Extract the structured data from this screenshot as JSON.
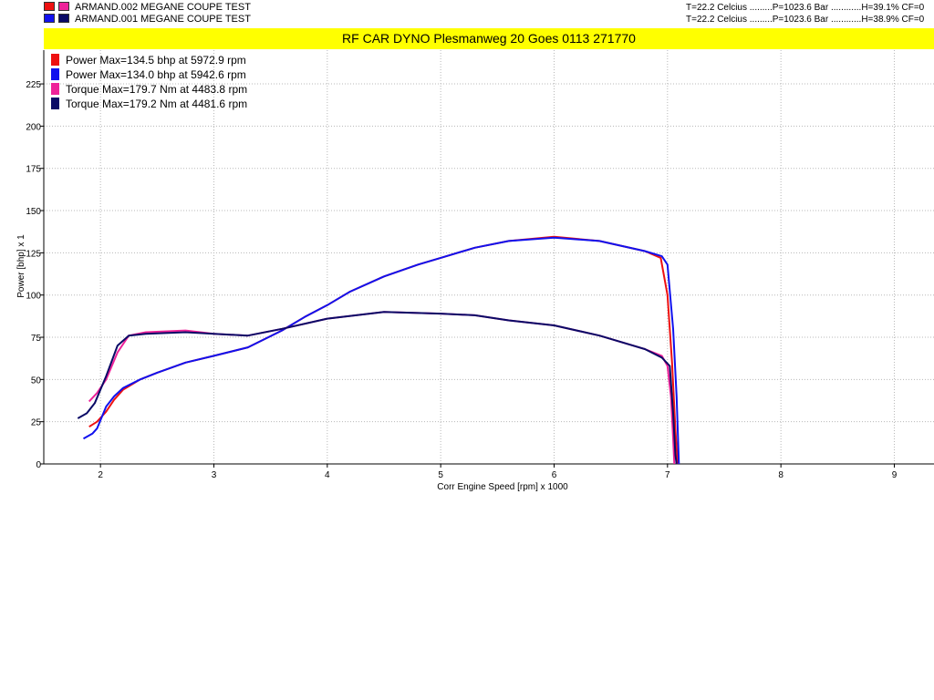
{
  "runs": [
    {
      "name": "ARMAND.002 MEGANE COUPE   TEST",
      "power_color": "#ee1111",
      "torque_color": "#ee2299",
      "conditions": "T=22.2 Celcius .........P=1023.6 Bar ............H=39.1% CF=0"
    },
    {
      "name": "ARMAND.001 MEGANE COUPE   TEST",
      "power_color": "#1111ee",
      "torque_color": "#0a0a66",
      "conditions": "T=22.2 Celcius .........P=1023.6 Bar ............H=38.9% CF=0"
    }
  ],
  "title": "RF CAR DYNO  Plesmanweg 20 Goes  0113 271770",
  "title_bg": "#ffff00",
  "legend": [
    {
      "label": "Power  Max=134.5 bhp at 5972.9 rpm",
      "color": "#ee1111"
    },
    {
      "label": "Power  Max=134.0 bhp at 5942.6 rpm",
      "color": "#1111ee"
    },
    {
      "label": "Torque  Max=179.7 Nm at 4483.8 rpm",
      "color": "#ee2299"
    },
    {
      "label": "Torque  Max=179.2 Nm at 4481.6 rpm",
      "color": "#0a0a66"
    }
  ],
  "chart_data": {
    "type": "line",
    "xlabel": "Corr Engine Speed [rpm] x 1000",
    "ylabel": "Power [bhp] x 1",
    "xlim": [
      1.5,
      9.35
    ],
    "ylim": [
      0,
      245
    ],
    "xticks": [
      2,
      3,
      4,
      5,
      6,
      7,
      8,
      9
    ],
    "yticks": [
      0,
      25,
      50,
      75,
      100,
      125,
      150,
      175,
      200,
      225
    ],
    "grid": true,
    "legend_position": "top-left",
    "series": [
      {
        "color": "#ee1111",
        "points": [
          [
            1.9,
            22
          ],
          [
            1.97,
            25
          ],
          [
            2.05,
            31
          ],
          [
            2.12,
            38
          ],
          [
            2.2,
            44
          ],
          [
            2.35,
            50
          ],
          [
            2.5,
            54
          ],
          [
            2.75,
            60
          ],
          [
            3.0,
            64
          ],
          [
            3.3,
            69
          ],
          [
            3.6,
            79
          ],
          [
            3.8,
            87
          ],
          [
            4.0,
            94
          ],
          [
            4.2,
            102
          ],
          [
            4.5,
            111
          ],
          [
            4.8,
            118
          ],
          [
            5.0,
            122
          ],
          [
            5.3,
            128
          ],
          [
            5.6,
            132
          ],
          [
            6.0,
            134.5
          ],
          [
            6.4,
            132
          ],
          [
            6.8,
            126
          ],
          [
            6.94,
            122
          ],
          [
            7.0,
            100
          ],
          [
            7.04,
            60
          ],
          [
            7.07,
            20
          ],
          [
            7.09,
            0
          ]
        ]
      },
      {
        "color": "#1111ee",
        "points": [
          [
            1.85,
            15
          ],
          [
            1.93,
            18
          ],
          [
            1.97,
            21
          ],
          [
            2.05,
            34
          ],
          [
            2.12,
            40
          ],
          [
            2.2,
            45
          ],
          [
            2.35,
            50
          ],
          [
            2.5,
            54
          ],
          [
            2.75,
            60
          ],
          [
            3.0,
            64
          ],
          [
            3.3,
            69
          ],
          [
            3.6,
            79
          ],
          [
            3.8,
            87
          ],
          [
            4.0,
            94
          ],
          [
            4.2,
            102
          ],
          [
            4.5,
            111
          ],
          [
            4.8,
            118
          ],
          [
            5.0,
            122
          ],
          [
            5.3,
            128
          ],
          [
            5.6,
            132
          ],
          [
            6.0,
            134
          ],
          [
            6.4,
            132
          ],
          [
            6.8,
            126
          ],
          [
            6.95,
            123
          ],
          [
            7.0,
            118
          ],
          [
            7.05,
            80
          ],
          [
            7.08,
            40
          ],
          [
            7.1,
            0
          ]
        ]
      },
      {
        "color": "#ee2299",
        "points": [
          [
            1.9,
            37
          ],
          [
            1.97,
            42
          ],
          [
            2.05,
            50
          ],
          [
            2.15,
            66
          ],
          [
            2.25,
            76
          ],
          [
            2.4,
            78
          ],
          [
            2.75,
            79
          ],
          [
            3.0,
            77
          ],
          [
            3.3,
            76
          ],
          [
            3.6,
            80
          ],
          [
            4.0,
            86
          ],
          [
            4.5,
            90
          ],
          [
            5.0,
            89
          ],
          [
            5.3,
            88
          ],
          [
            5.6,
            85
          ],
          [
            6.0,
            82
          ],
          [
            6.4,
            76
          ],
          [
            6.8,
            68
          ],
          [
            6.95,
            64
          ],
          [
            7.0,
            58
          ],
          [
            7.03,
            40
          ],
          [
            7.05,
            15
          ],
          [
            7.06,
            0
          ]
        ]
      },
      {
        "color": "#0a0a66",
        "points": [
          [
            1.8,
            27
          ],
          [
            1.88,
            30
          ],
          [
            1.95,
            36
          ],
          [
            2.05,
            52
          ],
          [
            2.15,
            70
          ],
          [
            2.25,
            76
          ],
          [
            2.4,
            77
          ],
          [
            2.75,
            78
          ],
          [
            3.0,
            77
          ],
          [
            3.3,
            76
          ],
          [
            3.6,
            80
          ],
          [
            4.0,
            86
          ],
          [
            4.5,
            90
          ],
          [
            5.0,
            89
          ],
          [
            5.3,
            88
          ],
          [
            5.6,
            85
          ],
          [
            6.0,
            82
          ],
          [
            6.4,
            76
          ],
          [
            6.8,
            68
          ],
          [
            6.95,
            63
          ],
          [
            7.02,
            58
          ],
          [
            7.05,
            30
          ],
          [
            7.07,
            5
          ],
          [
            7.08,
            0
          ]
        ]
      }
    ]
  }
}
